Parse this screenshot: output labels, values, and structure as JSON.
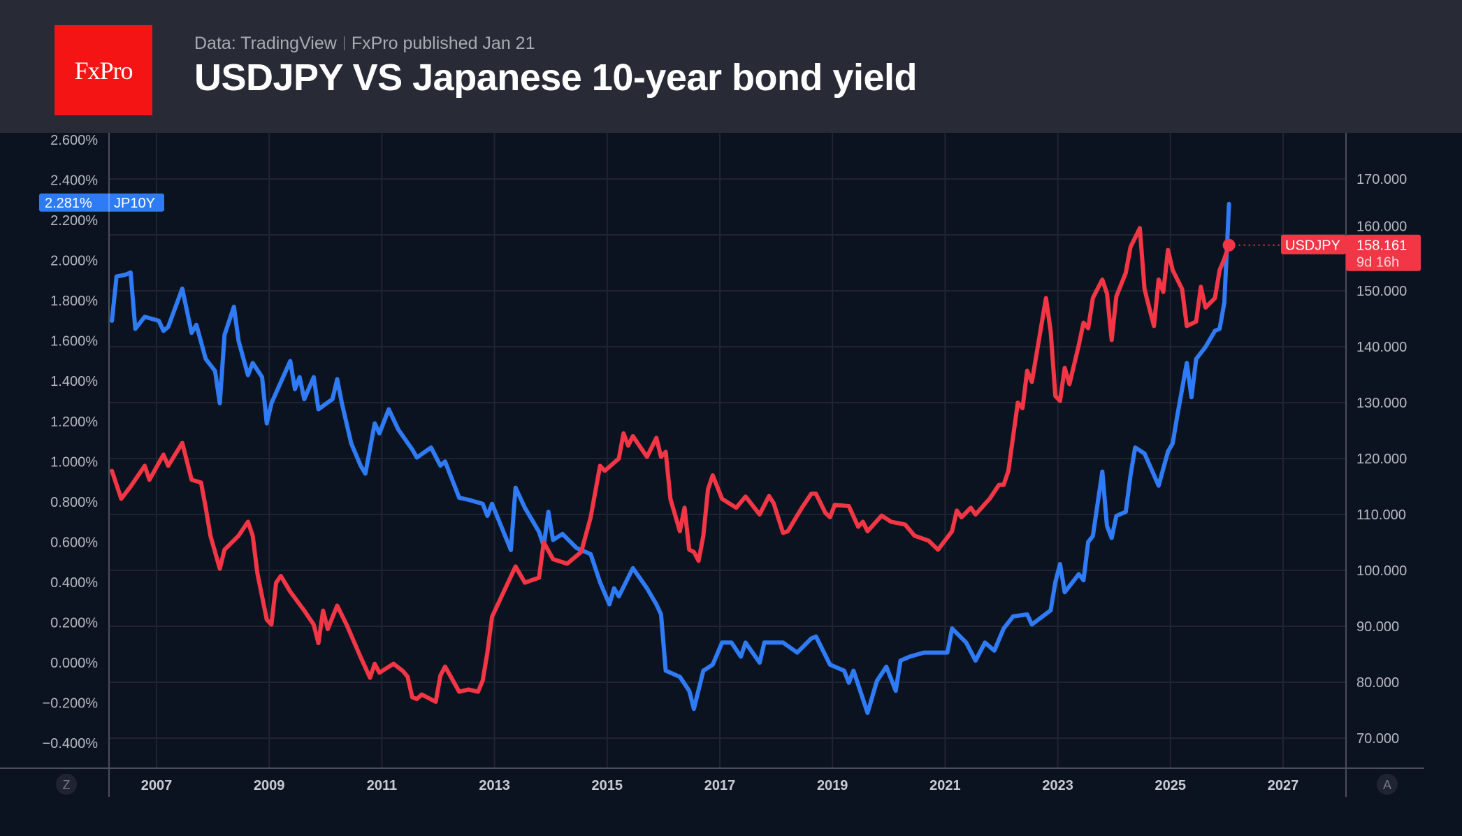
{
  "header": {
    "logo_text": "FxPro",
    "source": "Data: TradingView",
    "published": "FxPro published Jan 21",
    "title": "USDJPY VS Japanese 10-year bond yield"
  },
  "controls": {
    "left_corner": "Z",
    "right_corner": "A"
  },
  "chart_data": {
    "type": "line",
    "title": "USDJPY VS Japanese 10-year bond yield",
    "x_ticks": [
      "2007",
      "2009",
      "2011",
      "2013",
      "2015",
      "2017",
      "2019",
      "2021",
      "2023",
      "2025",
      "2027"
    ],
    "xlim": [
      "2006-03",
      "2028-03"
    ],
    "left_axis": {
      "ticks": [
        "2.600%",
        "2.400%",
        "2.200%",
        "2.000%",
        "1.800%",
        "1.600%",
        "1.400%",
        "1.200%",
        "1.000%",
        "0.800%",
        "0.600%",
        "0.400%",
        "0.200%",
        "0.000%",
        "−0.200%",
        "−0.400%"
      ],
      "ylim": [
        -0.5,
        2.66
      ]
    },
    "right_axis": {
      "ticks": [
        "170.000",
        "160.000",
        "150.000",
        "140.000",
        "130.000",
        "120.000",
        "110.000",
        "100.000",
        "90.000",
        "80.000",
        "70.000"
      ],
      "ylim": [
        65.4,
        176.9
      ]
    },
    "grid": true,
    "series": [
      {
        "name": "JP10Y",
        "axis": "left",
        "color": "#2f7bf5",
        "last_value_label": "2.281%",
        "points": [
          [
            "2006-03",
            1.7
          ],
          [
            "2006-04",
            1.92
          ],
          [
            "2006-06",
            1.93
          ],
          [
            "2006-07",
            1.94
          ],
          [
            "2006-08",
            1.66
          ],
          [
            "2006-10",
            1.72
          ],
          [
            "2007-01",
            1.7
          ],
          [
            "2007-02",
            1.65
          ],
          [
            "2007-03",
            1.67
          ],
          [
            "2007-06",
            1.86
          ],
          [
            "2007-08",
            1.64
          ],
          [
            "2007-09",
            1.68
          ],
          [
            "2007-11",
            1.51
          ],
          [
            "2008-01",
            1.45
          ],
          [
            "2008-02",
            1.29
          ],
          [
            "2008-03",
            1.63
          ],
          [
            "2008-05",
            1.77
          ],
          [
            "2008-06",
            1.6
          ],
          [
            "2008-08",
            1.43
          ],
          [
            "2008-09",
            1.49
          ],
          [
            "2008-11",
            1.42
          ],
          [
            "2008-12",
            1.19
          ],
          [
            "2009-01",
            1.29
          ],
          [
            "2009-05",
            1.5
          ],
          [
            "2009-06",
            1.36
          ],
          [
            "2009-07",
            1.42
          ],
          [
            "2009-08",
            1.31
          ],
          [
            "2009-10",
            1.42
          ],
          [
            "2009-11",
            1.26
          ],
          [
            "2010-02",
            1.31
          ],
          [
            "2010-03",
            1.41
          ],
          [
            "2010-04",
            1.29
          ],
          [
            "2010-06",
            1.09
          ],
          [
            "2010-08",
            0.98
          ],
          [
            "2010-09",
            0.94
          ],
          [
            "2010-11",
            1.19
          ],
          [
            "2010-12",
            1.14
          ],
          [
            "2011-02",
            1.26
          ],
          [
            "2011-04",
            1.16
          ],
          [
            "2011-07",
            1.06
          ],
          [
            "2011-08",
            1.02
          ],
          [
            "2011-11",
            1.07
          ],
          [
            "2012-01",
            0.98
          ],
          [
            "2012-02",
            1.0
          ],
          [
            "2012-05",
            0.82
          ],
          [
            "2012-07",
            0.81
          ],
          [
            "2012-10",
            0.79
          ],
          [
            "2012-11",
            0.73
          ],
          [
            "2012-12",
            0.79
          ],
          [
            "2013-04",
            0.56
          ],
          [
            "2013-05",
            0.87
          ],
          [
            "2013-07",
            0.77
          ],
          [
            "2013-10",
            0.65
          ],
          [
            "2013-11",
            0.58
          ],
          [
            "2013-12",
            0.75
          ],
          [
            "2014-01",
            0.61
          ],
          [
            "2014-03",
            0.64
          ],
          [
            "2014-06",
            0.57
          ],
          [
            "2014-09",
            0.54
          ],
          [
            "2014-11",
            0.4
          ],
          [
            "2015-01",
            0.29
          ],
          [
            "2015-02",
            0.37
          ],
          [
            "2015-03",
            0.33
          ],
          [
            "2015-06",
            0.47
          ],
          [
            "2015-09",
            0.37
          ],
          [
            "2015-11",
            0.29
          ],
          [
            "2015-12",
            0.24
          ],
          [
            "2016-01",
            -0.04
          ],
          [
            "2016-04",
            -0.07
          ],
          [
            "2016-06",
            -0.14
          ],
          [
            "2016-07",
            -0.23
          ],
          [
            "2016-09",
            -0.04
          ],
          [
            "2016-11",
            -0.01
          ],
          [
            "2017-01",
            0.1
          ],
          [
            "2017-03",
            0.1
          ],
          [
            "2017-05",
            0.03
          ],
          [
            "2017-06",
            0.1
          ],
          [
            "2017-09",
            0.0
          ],
          [
            "2017-10",
            0.1
          ],
          [
            "2018-02",
            0.1
          ],
          [
            "2018-05",
            0.05
          ],
          [
            "2018-08",
            0.12
          ],
          [
            "2018-09",
            0.13
          ],
          [
            "2018-12",
            -0.01
          ],
          [
            "2019-03",
            -0.04
          ],
          [
            "2019-04",
            -0.1
          ],
          [
            "2019-05",
            -0.04
          ],
          [
            "2019-08",
            -0.25
          ],
          [
            "2019-10",
            -0.09
          ],
          [
            "2019-12",
            -0.02
          ],
          [
            "2020-02",
            -0.14
          ],
          [
            "2020-03",
            0.01
          ],
          [
            "2020-05",
            0.03
          ],
          [
            "2020-08",
            0.05
          ],
          [
            "2020-10",
            0.05
          ],
          [
            "2021-01",
            0.05
          ],
          [
            "2021-02",
            0.17
          ],
          [
            "2021-05",
            0.1
          ],
          [
            "2021-07",
            0.01
          ],
          [
            "2021-09",
            0.1
          ],
          [
            "2021-11",
            0.06
          ],
          [
            "2022-01",
            0.17
          ],
          [
            "2022-03",
            0.23
          ],
          [
            "2022-06",
            0.24
          ],
          [
            "2022-07",
            0.19
          ],
          [
            "2022-11",
            0.26
          ],
          [
            "2022-12",
            0.4
          ],
          [
            "2023-01",
            0.49
          ],
          [
            "2023-02",
            0.35
          ],
          [
            "2023-05",
            0.44
          ],
          [
            "2023-06",
            0.41
          ],
          [
            "2023-07",
            0.6
          ],
          [
            "2023-08",
            0.63
          ],
          [
            "2023-10",
            0.95
          ],
          [
            "2023-11",
            0.68
          ],
          [
            "2023-12",
            0.62
          ],
          [
            "2024-01",
            0.73
          ],
          [
            "2024-03",
            0.75
          ],
          [
            "2024-04",
            0.93
          ],
          [
            "2024-05",
            1.07
          ],
          [
            "2024-07",
            1.04
          ],
          [
            "2024-10",
            0.88
          ],
          [
            "2024-12",
            1.05
          ],
          [
            "2025-01",
            1.09
          ],
          [
            "2025-02",
            1.23
          ],
          [
            "2025-04",
            1.49
          ],
          [
            "2025-05",
            1.32
          ],
          [
            "2025-06",
            1.51
          ],
          [
            "2025-08",
            1.57
          ],
          [
            "2025-10",
            1.65
          ],
          [
            "2025-11",
            1.66
          ],
          [
            "2025-12",
            1.79
          ],
          [
            "2026-01",
            2.281
          ]
        ]
      },
      {
        "name": "USDJPY",
        "axis": "right",
        "color": "#f23645",
        "last_value_label": "158.161",
        "countdown": "9d 16h",
        "points": [
          [
            "2006-03",
            117.8
          ],
          [
            "2006-05",
            112.8
          ],
          [
            "2006-07",
            115.0
          ],
          [
            "2006-10",
            118.7
          ],
          [
            "2006-11",
            116.2
          ],
          [
            "2007-02",
            120.7
          ],
          [
            "2007-03",
            118.7
          ],
          [
            "2007-06",
            122.8
          ],
          [
            "2007-08",
            116.2
          ],
          [
            "2007-10",
            115.7
          ],
          [
            "2007-11",
            111.2
          ],
          [
            "2007-12",
            106.2
          ],
          [
            "2008-02",
            100.3
          ],
          [
            "2008-03",
            103.7
          ],
          [
            "2008-06",
            106.2
          ],
          [
            "2008-08",
            108.7
          ],
          [
            "2008-09",
            106.2
          ],
          [
            "2008-10",
            99.5
          ],
          [
            "2008-12",
            91.2
          ],
          [
            "2009-01",
            90.3
          ],
          [
            "2009-02",
            97.8
          ],
          [
            "2009-03",
            99.0
          ],
          [
            "2009-05",
            96.2
          ],
          [
            "2009-08",
            92.8
          ],
          [
            "2009-10",
            90.3
          ],
          [
            "2009-11",
            87.0
          ],
          [
            "2009-12",
            92.8
          ],
          [
            "2010-01",
            89.5
          ],
          [
            "2010-03",
            93.7
          ],
          [
            "2010-05",
            90.3
          ],
          [
            "2010-08",
            84.5
          ],
          [
            "2010-10",
            80.8
          ],
          [
            "2010-11",
            83.3
          ],
          [
            "2010-12",
            81.7
          ],
          [
            "2011-03",
            83.3
          ],
          [
            "2011-05",
            82.0
          ],
          [
            "2011-06",
            81.0
          ],
          [
            "2011-07",
            77.3
          ],
          [
            "2011-08",
            77.0
          ],
          [
            "2011-09",
            77.8
          ],
          [
            "2011-12",
            76.5
          ],
          [
            "2012-01",
            81.2
          ],
          [
            "2012-02",
            82.8
          ],
          [
            "2012-05",
            78.3
          ],
          [
            "2012-07",
            78.7
          ],
          [
            "2012-09",
            78.3
          ],
          [
            "2012-10",
            80.3
          ],
          [
            "2012-11",
            85.3
          ],
          [
            "2012-12",
            91.7
          ],
          [
            "2013-02",
            95.3
          ],
          [
            "2013-05",
            100.7
          ],
          [
            "2013-07",
            97.8
          ],
          [
            "2013-10",
            98.7
          ],
          [
            "2013-11",
            105.0
          ],
          [
            "2014-01",
            102.0
          ],
          [
            "2014-04",
            101.2
          ],
          [
            "2014-07",
            103.3
          ],
          [
            "2014-09",
            109.5
          ],
          [
            "2014-11",
            118.7
          ],
          [
            "2014-12",
            117.8
          ],
          [
            "2015-03",
            120.0
          ],
          [
            "2015-04",
            124.5
          ],
          [
            "2015-05",
            122.3
          ],
          [
            "2015-06",
            124.0
          ],
          [
            "2015-09",
            120.3
          ],
          [
            "2015-11",
            123.7
          ],
          [
            "2015-12",
            120.3
          ],
          [
            "2016-01",
            121.2
          ],
          [
            "2016-02",
            112.8
          ],
          [
            "2016-04",
            107.0
          ],
          [
            "2016-05",
            111.2
          ],
          [
            "2016-06",
            103.7
          ],
          [
            "2016-07",
            103.3
          ],
          [
            "2016-08",
            101.7
          ],
          [
            "2016-09",
            106.2
          ],
          [
            "2016-10",
            114.5
          ],
          [
            "2016-11",
            117.0
          ],
          [
            "2017-01",
            112.8
          ],
          [
            "2017-04",
            111.2
          ],
          [
            "2017-06",
            113.2
          ],
          [
            "2017-09",
            110.0
          ],
          [
            "2017-11",
            113.3
          ],
          [
            "2017-12",
            112.0
          ],
          [
            "2018-02",
            106.7
          ],
          [
            "2018-03",
            107.0
          ],
          [
            "2018-06",
            111.2
          ],
          [
            "2018-08",
            113.7
          ],
          [
            "2018-09",
            113.7
          ],
          [
            "2018-11",
            110.3
          ],
          [
            "2018-12",
            109.5
          ],
          [
            "2019-01",
            111.7
          ],
          [
            "2019-04",
            111.5
          ],
          [
            "2019-06",
            107.8
          ],
          [
            "2019-07",
            108.7
          ],
          [
            "2019-08",
            107.0
          ],
          [
            "2019-11",
            109.8
          ],
          [
            "2020-01",
            108.7
          ],
          [
            "2020-04",
            108.2
          ],
          [
            "2020-06",
            106.2
          ],
          [
            "2020-09",
            105.3
          ],
          [
            "2020-11",
            103.7
          ],
          [
            "2021-02",
            107.0
          ],
          [
            "2021-03",
            110.7
          ],
          [
            "2021-04",
            109.5
          ],
          [
            "2021-06",
            111.2
          ],
          [
            "2021-07",
            110.0
          ],
          [
            "2021-10",
            112.8
          ],
          [
            "2021-12",
            115.3
          ],
          [
            "2022-01",
            115.3
          ],
          [
            "2022-02",
            117.8
          ],
          [
            "2022-04",
            130.0
          ],
          [
            "2022-05",
            129.0
          ],
          [
            "2022-06",
            135.7
          ],
          [
            "2022-07",
            133.7
          ],
          [
            "2022-10",
            148.7
          ],
          [
            "2022-11",
            142.8
          ],
          [
            "2022-12",
            131.2
          ],
          [
            "2023-01",
            130.3
          ],
          [
            "2023-02",
            136.2
          ],
          [
            "2023-03",
            133.3
          ],
          [
            "2023-05",
            140.3
          ],
          [
            "2023-06",
            144.3
          ],
          [
            "2023-07",
            143.3
          ],
          [
            "2023-08",
            148.7
          ],
          [
            "2023-10",
            152.0
          ],
          [
            "2023-11",
            149.5
          ],
          [
            "2023-12",
            141.2
          ],
          [
            "2024-01",
            149.0
          ],
          [
            "2024-03",
            153.2
          ],
          [
            "2024-04",
            157.8
          ],
          [
            "2024-06",
            161.2
          ],
          [
            "2024-07",
            150.3
          ],
          [
            "2024-08",
            147.0
          ],
          [
            "2024-09",
            143.7
          ],
          [
            "2024-10",
            152.0
          ],
          [
            "2024-11",
            149.8
          ],
          [
            "2024-12",
            157.3
          ],
          [
            "2025-01",
            153.7
          ],
          [
            "2025-03",
            150.3
          ],
          [
            "2025-04",
            143.7
          ],
          [
            "2025-06",
            144.5
          ],
          [
            "2025-07",
            150.7
          ],
          [
            "2025-08",
            147.0
          ],
          [
            "2025-10",
            148.7
          ],
          [
            "2025-11",
            153.7
          ],
          [
            "2025-12",
            155.7
          ],
          [
            "2026-01",
            158.161
          ]
        ]
      }
    ]
  }
}
